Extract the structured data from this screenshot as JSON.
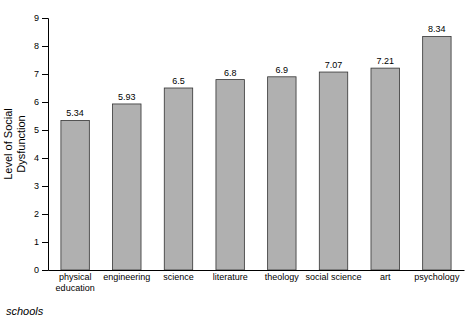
{
  "chart_data": {
    "type": "bar",
    "categories": [
      "physical\neducation",
      "engineering",
      "science",
      "literature",
      "theology",
      "social science",
      "art",
      "psychology"
    ],
    "values": [
      5.34,
      5.93,
      6.5,
      6.8,
      6.9,
      7.07,
      7.21,
      8.34
    ],
    "color": "#b0b0b0",
    "ylabel": "Level of Social\nDysfunction",
    "xlabel": "schools",
    "ylim": [
      0,
      9
    ],
    "yticks": [
      0,
      1,
      2,
      3,
      4,
      5,
      6,
      7,
      8,
      9
    ],
    "grid": false,
    "data_labels": true
  }
}
